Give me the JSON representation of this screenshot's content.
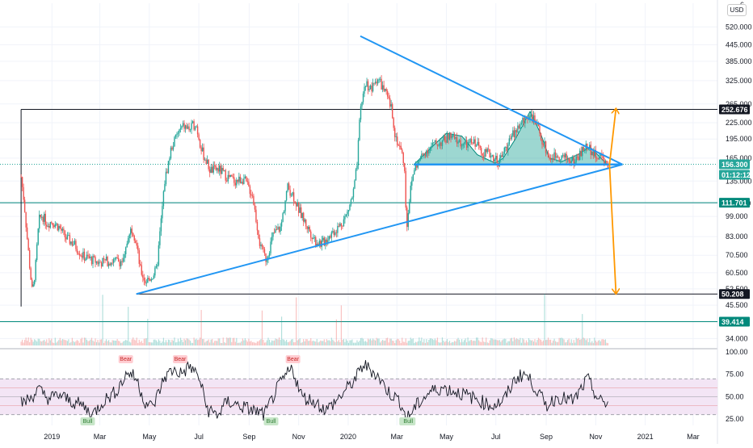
{
  "ui": {
    "currency_button": "USD",
    "top_axis_cut_label": "6"
  },
  "colors": {
    "up": "#26a69a",
    "down": "#ef5350",
    "pattern_line": "#2196f3",
    "arrow": "#ff9800",
    "hs_fill": "#26a69a",
    "rsi_line": "#131722",
    "rsi_band": "#f3e5f5",
    "level_line": "#131722",
    "teal_level": "#00897b"
  },
  "chart_data": [
    {
      "type": "candlestick",
      "y_scale": "log",
      "ylim": [
        32,
        640
      ],
      "x_range": [
        "2018-10-29",
        "2021-03-31"
      ],
      "x_ticks": [
        {
          "label": "2019",
          "date": "2019-01-01"
        },
        {
          "label": "Mar",
          "date": "2019-03-01"
        },
        {
          "label": "May",
          "date": "2019-05-01"
        },
        {
          "label": "Jul",
          "date": "2019-07-01"
        },
        {
          "label": "Sep",
          "date": "2019-09-01"
        },
        {
          "label": "Nov",
          "date": "2019-11-01"
        },
        {
          "label": "2020",
          "date": "2020-01-01"
        },
        {
          "label": "Mar",
          "date": "2020-03-01"
        },
        {
          "label": "May",
          "date": "2020-05-01"
        },
        {
          "label": "Jul",
          "date": "2020-07-01"
        },
        {
          "label": "Sep",
          "date": "2020-09-01"
        },
        {
          "label": "Nov",
          "date": "2020-11-01"
        },
        {
          "label": "2021",
          "date": "2021-01-01"
        },
        {
          "label": "Mar",
          "date": "2021-03-01"
        }
      ],
      "y_ticks": [
        "520.000",
        "445.000",
        "385.000",
        "325.000",
        "265.000",
        "225.000",
        "195.000",
        "165.000",
        "135.000",
        "111.000",
        "99.000",
        "83.000",
        "70.500",
        "60.500",
        "52.500",
        "45.500",
        "39.500",
        "34.000"
      ],
      "price_labels": [
        {
          "value": "252.676",
          "style": "dark"
        },
        {
          "value": "156.300",
          "style": "green"
        },
        {
          "value": "01:12:12",
          "style": "green"
        },
        {
          "value": "111.701",
          "style": "teal"
        },
        {
          "value": "50.208",
          "style": "dark"
        },
        {
          "value": "39.414",
          "style": "teal"
        }
      ],
      "horizontal_levels": [
        {
          "price": 252.676,
          "from": "2018-11-24",
          "color": "dark"
        },
        {
          "price": 111.701,
          "from": "2018-10-29",
          "color": "teal"
        },
        {
          "price": 50.208,
          "from": "2019-04-15",
          "color": "dark"
        },
        {
          "price": 39.414,
          "from": "2018-10-29",
          "color": "teal"
        }
      ],
      "price_path": [
        [
          "2018-11-24",
          140
        ],
        [
          "2018-11-28",
          110
        ],
        [
          "2018-12-01",
          85
        ],
        [
          "2018-12-05",
          62
        ],
        [
          "2018-12-08",
          50
        ],
        [
          "2018-12-12",
          65
        ],
        [
          "2018-12-16",
          96
        ],
        [
          "2018-12-20",
          100
        ],
        [
          "2018-12-26",
          93
        ],
        [
          "2019-01-01",
          95
        ],
        [
          "2019-01-10",
          90
        ],
        [
          "2019-01-18",
          82
        ],
        [
          "2019-01-28",
          78
        ],
        [
          "2019-02-08",
          70
        ],
        [
          "2019-02-18",
          68
        ],
        [
          "2019-02-28",
          66
        ],
        [
          "2019-03-10",
          67
        ],
        [
          "2019-03-20",
          67
        ],
        [
          "2019-03-31",
          67
        ],
        [
          "2019-04-05",
          85
        ],
        [
          "2019-04-10",
          90
        ],
        [
          "2019-04-15",
          78
        ],
        [
          "2019-04-20",
          62
        ],
        [
          "2019-04-26",
          56
        ],
        [
          "2019-05-03",
          58
        ],
        [
          "2019-05-10",
          62
        ],
        [
          "2019-05-14",
          85
        ],
        [
          "2019-05-20",
          135
        ],
        [
          "2019-05-28",
          180
        ],
        [
          "2019-06-05",
          205
        ],
        [
          "2019-06-12",
          218
        ],
        [
          "2019-06-20",
          212
        ],
        [
          "2019-06-27",
          225
        ],
        [
          "2019-07-05",
          175
        ],
        [
          "2019-07-15",
          148
        ],
        [
          "2019-07-25",
          150
        ],
        [
          "2019-08-05",
          140
        ],
        [
          "2019-08-15",
          135
        ],
        [
          "2019-08-25",
          138
        ],
        [
          "2019-09-05",
          120
        ],
        [
          "2019-09-15",
          75
        ],
        [
          "2019-09-22",
          68
        ],
        [
          "2019-10-01",
          85
        ],
        [
          "2019-10-10",
          90
        ],
        [
          "2019-10-18",
          128
        ],
        [
          "2019-10-25",
          120
        ],
        [
          "2019-11-01",
          105
        ],
        [
          "2019-11-12",
          90
        ],
        [
          "2019-11-22",
          80
        ],
        [
          "2019-11-30",
          78
        ],
        [
          "2019-12-10",
          85
        ],
        [
          "2019-12-20",
          90
        ],
        [
          "2019-12-30",
          100
        ],
        [
          "2020-01-07",
          120
        ],
        [
          "2020-01-12",
          155
        ],
        [
          "2020-01-16",
          250
        ],
        [
          "2020-01-22",
          320
        ],
        [
          "2020-01-30",
          300
        ],
        [
          "2020-02-06",
          335
        ],
        [
          "2020-02-14",
          300
        ],
        [
          "2020-02-18",
          280
        ],
        [
          "2020-02-24",
          250
        ],
        [
          "2020-02-28",
          200
        ],
        [
          "2020-03-05",
          180
        ],
        [
          "2020-03-10",
          160
        ],
        [
          "2020-03-13",
          90
        ],
        [
          "2020-03-17",
          120
        ],
        [
          "2020-03-22",
          150
        ],
        [
          "2020-03-28",
          160
        ],
        [
          "2020-04-05",
          175
        ],
        [
          "2020-04-15",
          185
        ],
        [
          "2020-04-25",
          190
        ],
        [
          "2020-05-05",
          200
        ],
        [
          "2020-05-15",
          190
        ],
        [
          "2020-05-25",
          185
        ],
        [
          "2020-06-05",
          190
        ],
        [
          "2020-06-15",
          175
        ],
        [
          "2020-06-25",
          170
        ],
        [
          "2020-07-05",
          160
        ],
        [
          "2020-07-15",
          185
        ],
        [
          "2020-07-25",
          210
        ],
        [
          "2020-08-05",
          230
        ],
        [
          "2020-08-12",
          245
        ],
        [
          "2020-08-20",
          220
        ],
        [
          "2020-08-28",
          190
        ],
        [
          "2020-09-05",
          165
        ],
        [
          "2020-09-15",
          170
        ],
        [
          "2020-09-25",
          165
        ],
        [
          "2020-10-05",
          160
        ],
        [
          "2020-10-15",
          175
        ],
        [
          "2020-10-22",
          185
        ],
        [
          "2020-10-30",
          170
        ],
        [
          "2020-11-08",
          166
        ],
        [
          "2020-11-14",
          159
        ],
        [
          "2020-11-17",
          156.3
        ]
      ],
      "volume": {
        "note": "bars at bottom of price pane"
      },
      "annotations": [
        {
          "type": "line",
          "name": "triangle-upper-trendline",
          "from": [
            "2020-01-16",
            480
          ],
          "to": [
            "2020-12-04",
            156
          ]
        },
        {
          "type": "line",
          "name": "triangle-lower-trendline",
          "from": [
            "2019-04-15",
            50.208
          ],
          "to": [
            "2020-12-04",
            156
          ]
        },
        {
          "type": "line",
          "name": "neckline",
          "from": [
            "2020-03-22",
            156
          ],
          "to": [
            "2020-12-04",
            156
          ]
        },
        {
          "type": "arrow",
          "name": "upside-target-arrow",
          "from": [
            "2020-11-18",
            156
          ],
          "to": [
            "2020-11-26",
            255
          ]
        },
        {
          "type": "arrow",
          "name": "downside-target-arrow",
          "from": [
            "2020-11-18",
            156
          ],
          "to": [
            "2020-11-26",
            50.208
          ]
        }
      ]
    },
    {
      "type": "line",
      "indicator": "RSI",
      "ylim": [
        18,
        100
      ],
      "y_ticks": [
        "100.00",
        "75.00",
        "50.00",
        "25.00"
      ],
      "band": [
        30,
        70
      ],
      "inner_levels": [
        60,
        40
      ],
      "mid_level": 50,
      "series": [
        {
          "values": [
            [
              "2018-11-24",
              43
            ],
            [
              "2018-12-05",
              48
            ],
            [
              "2018-12-15",
              58
            ],
            [
              "2018-12-28",
              48
            ],
            [
              "2019-01-10",
              52
            ],
            [
              "2019-01-22",
              46
            ],
            [
              "2019-02-08",
              40
            ],
            [
              "2019-02-20",
              30
            ],
            [
              "2019-03-05",
              45
            ],
            [
              "2019-03-20",
              55
            ],
            [
              "2019-04-05",
              78
            ],
            [
              "2019-04-15",
              70
            ],
            [
              "2019-04-25",
              45
            ],
            [
              "2019-05-05",
              38
            ],
            [
              "2019-05-20",
              72
            ],
            [
              "2019-05-30",
              80
            ],
            [
              "2019-06-10",
              76
            ],
            [
              "2019-06-20",
              84
            ],
            [
              "2019-07-01",
              72
            ],
            [
              "2019-07-12",
              35
            ],
            [
              "2019-07-25",
              30
            ],
            [
              "2019-08-05",
              45
            ],
            [
              "2019-08-20",
              40
            ],
            [
              "2019-09-05",
              35
            ],
            [
              "2019-09-20",
              30
            ],
            [
              "2019-10-05",
              58
            ],
            [
              "2019-10-15",
              72
            ],
            [
              "2019-10-24",
              82
            ],
            [
              "2019-11-05",
              50
            ],
            [
              "2019-11-20",
              45
            ],
            [
              "2019-12-05",
              35
            ],
            [
              "2019-12-20",
              48
            ],
            [
              "2020-01-10",
              70
            ],
            [
              "2020-01-20",
              86
            ],
            [
              "2020-02-05",
              75
            ],
            [
              "2020-02-20",
              55
            ],
            [
              "2020-03-05",
              45
            ],
            [
              "2020-03-13",
              25
            ],
            [
              "2020-03-25",
              40
            ],
            [
              "2020-04-10",
              55
            ],
            [
              "2020-04-25",
              60
            ],
            [
              "2020-05-15",
              55
            ],
            [
              "2020-06-05",
              48
            ],
            [
              "2020-06-25",
              40
            ],
            [
              "2020-07-10",
              45
            ],
            [
              "2020-07-25",
              70
            ],
            [
              "2020-08-05",
              76
            ],
            [
              "2020-08-15",
              65
            ],
            [
              "2020-09-01",
              40
            ],
            [
              "2020-09-15",
              50
            ],
            [
              "2020-10-05",
              45
            ],
            [
              "2020-10-22",
              70
            ],
            [
              "2020-11-05",
              45
            ],
            [
              "2020-11-17",
              42
            ]
          ]
        }
      ],
      "signals": [
        {
          "label": "Bull",
          "date": "2019-02-14",
          "type": "bull"
        },
        {
          "label": "Bear",
          "date": "2019-04-02",
          "type": "bear"
        },
        {
          "label": "Bear",
          "date": "2019-06-08",
          "type": "bear"
        },
        {
          "label": "Bull",
          "date": "2019-09-28",
          "type": "bull"
        },
        {
          "label": "Bear",
          "date": "2019-10-25",
          "type": "bear"
        },
        {
          "label": "Bull",
          "date": "2020-03-13",
          "type": "bull"
        },
        {
          "label": "Bull",
          "date": "2020-03-15",
          "type": "bull"
        }
      ]
    }
  ]
}
